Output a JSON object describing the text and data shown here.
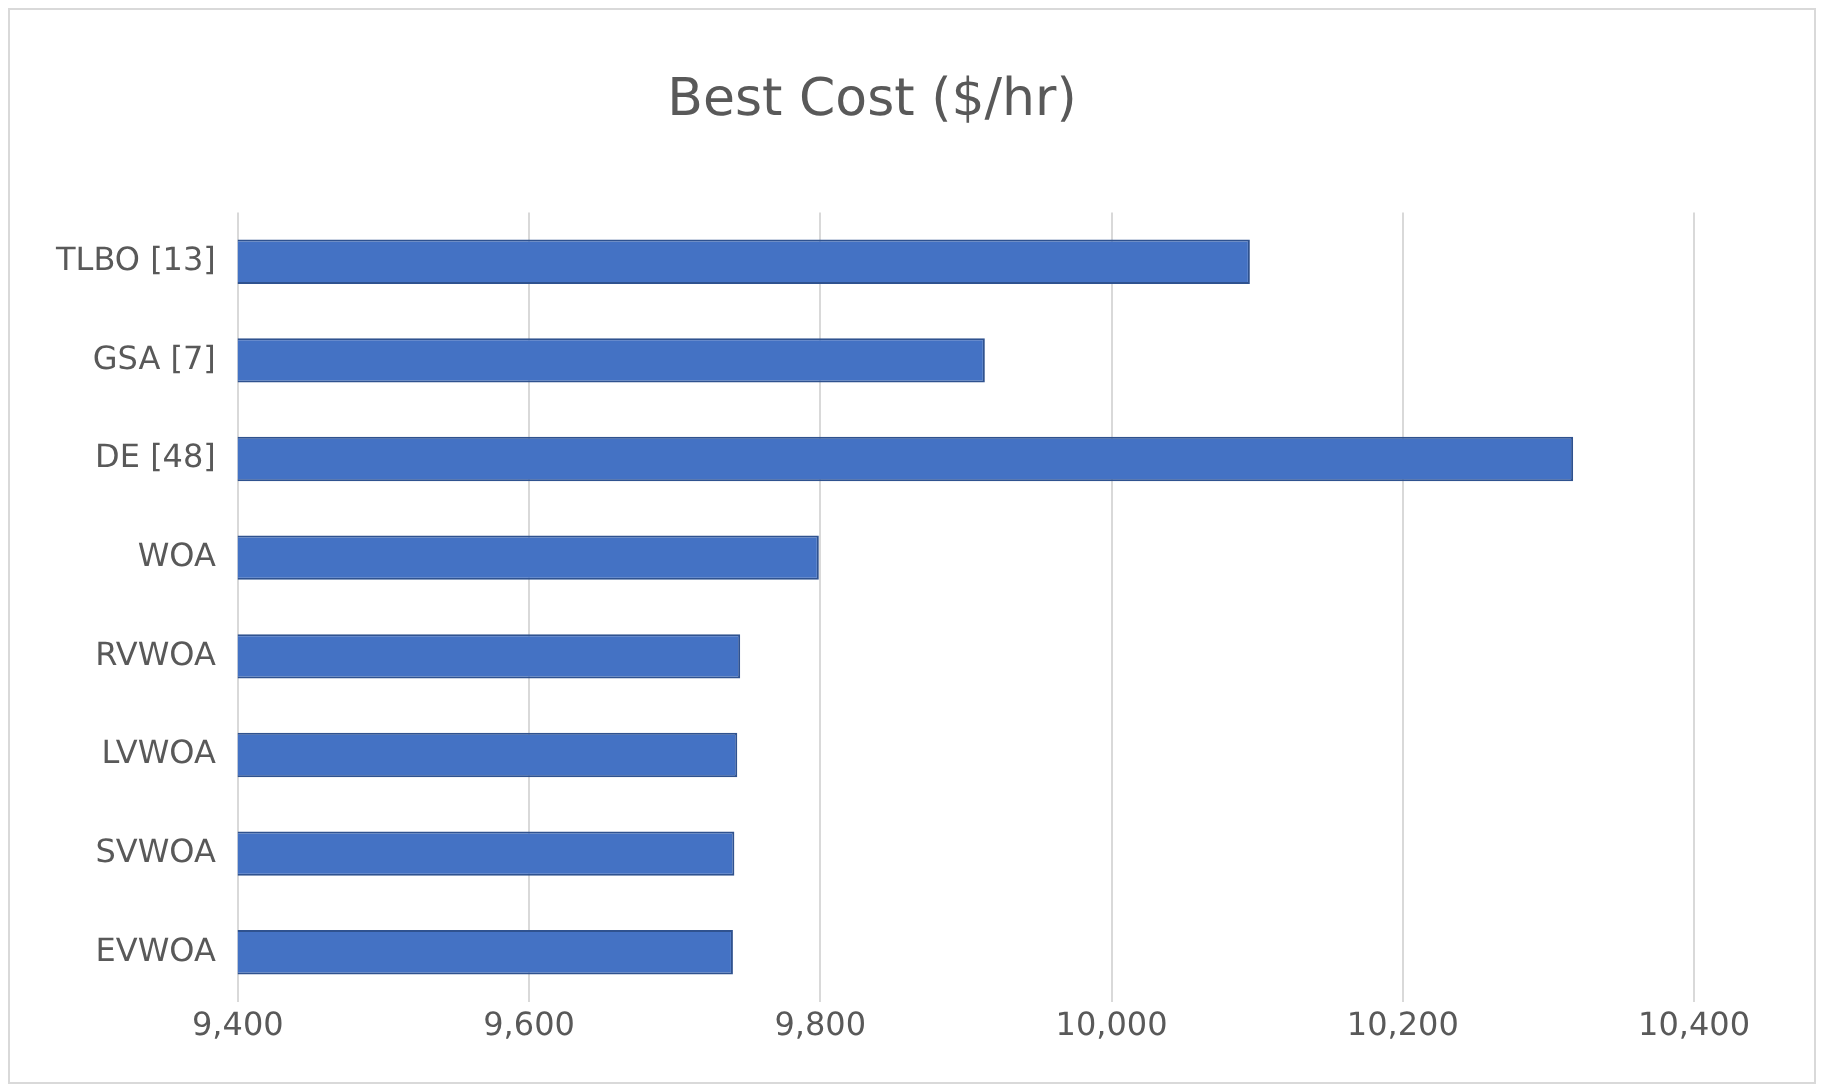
{
  "chart_data": {
    "type": "bar",
    "title": "Best Cost ($/hr)",
    "orientation": "horizontal",
    "categories": [
      "TLBO [13]",
      "GSA [7]",
      "DE [48]",
      "WOA",
      "RVWOA",
      "LVWOA",
      "SVWOA",
      "EVWOA"
    ],
    "values": [
      10095,
      9913,
      10317,
      9799,
      9745,
      9743,
      9741,
      9740
    ],
    "color": "#4472c4",
    "xlim": [
      9400,
      10400
    ],
    "xticks": [
      {
        "value": 9400,
        "label": "9,400"
      },
      {
        "value": 9600,
        "label": "9,600"
      },
      {
        "value": 9800,
        "label": "9,800"
      },
      {
        "value": 10000,
        "label": "10,000"
      },
      {
        "value": 10200,
        "label": "10,200"
      },
      {
        "value": 10400,
        "label": "10,400"
      }
    ],
    "grid": "x"
  }
}
